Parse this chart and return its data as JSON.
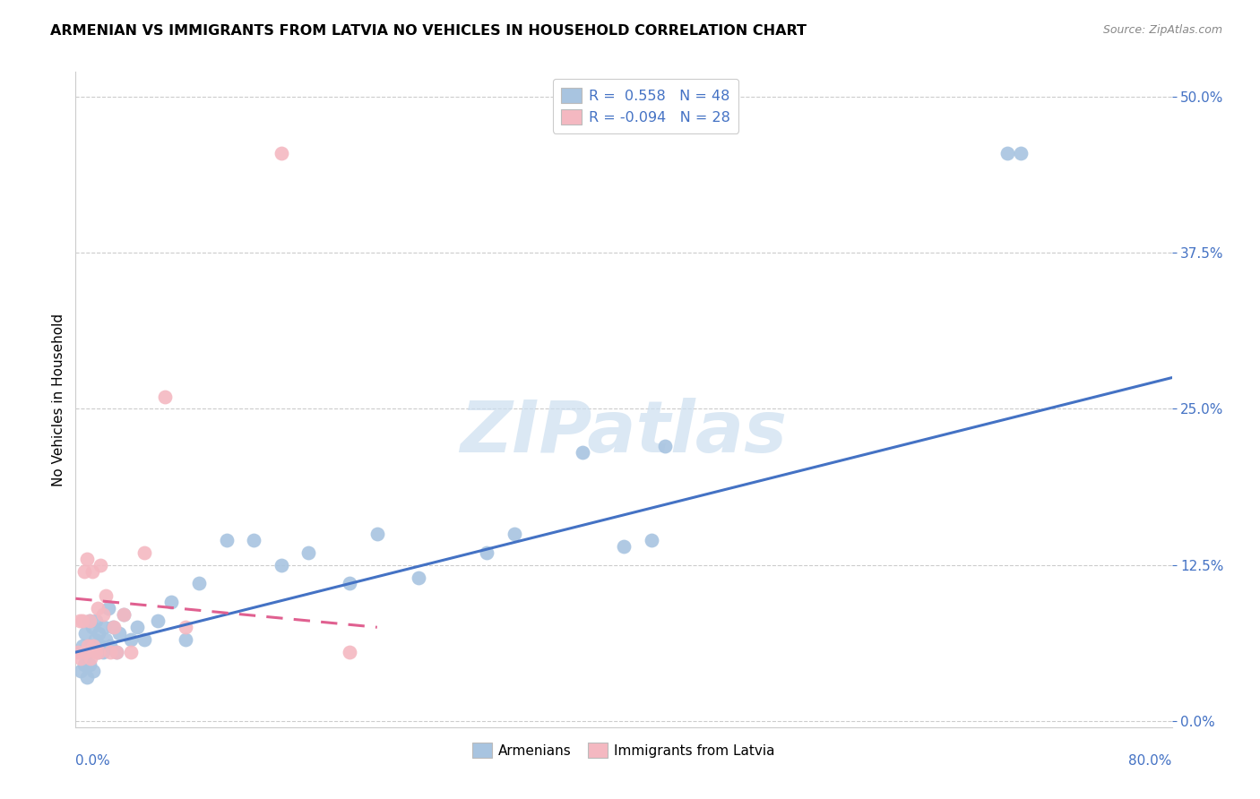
{
  "title": "ARMENIAN VS IMMIGRANTS FROM LATVIA NO VEHICLES IN HOUSEHOLD CORRELATION CHART",
  "source": "Source: ZipAtlas.com",
  "ylabel": "No Vehicles in Household",
  "xlim": [
    0.0,
    0.8
  ],
  "ylim": [
    -0.005,
    0.52
  ],
  "yticks": [
    0.0,
    0.125,
    0.25,
    0.375,
    0.5
  ],
  "ytick_labels": [
    "0.0%",
    "12.5%",
    "25.0%",
    "37.5%",
    "50.0%"
  ],
  "armenian_R": 0.558,
  "armenian_N": 48,
  "latvia_R": -0.094,
  "latvia_N": 28,
  "armenian_color": "#a8c4e0",
  "latvia_color": "#f4b8c1",
  "armenian_line_color": "#4472c4",
  "latvia_line_color": "#e06090",
  "watermark_color": "#ccdff0",
  "armenian_x": [
    0.003,
    0.004,
    0.005,
    0.006,
    0.007,
    0.008,
    0.009,
    0.01,
    0.01,
    0.011,
    0.012,
    0.013,
    0.014,
    0.015,
    0.016,
    0.017,
    0.018,
    0.02,
    0.021,
    0.022,
    0.024,
    0.025,
    0.027,
    0.03,
    0.032,
    0.035,
    0.04,
    0.045,
    0.05,
    0.06,
    0.07,
    0.08,
    0.09,
    0.11,
    0.13,
    0.15,
    0.17,
    0.2,
    0.22,
    0.25,
    0.3,
    0.32,
    0.37,
    0.4,
    0.42,
    0.43,
    0.68,
    0.69
  ],
  "armenian_y": [
    0.055,
    0.04,
    0.06,
    0.045,
    0.07,
    0.035,
    0.055,
    0.08,
    0.045,
    0.06,
    0.075,
    0.04,
    0.065,
    0.08,
    0.055,
    0.07,
    0.06,
    0.055,
    0.075,
    0.065,
    0.09,
    0.06,
    0.075,
    0.055,
    0.07,
    0.085,
    0.065,
    0.075,
    0.065,
    0.08,
    0.095,
    0.065,
    0.11,
    0.145,
    0.145,
    0.125,
    0.135,
    0.11,
    0.15,
    0.115,
    0.135,
    0.15,
    0.215,
    0.14,
    0.145,
    0.22,
    0.455,
    0.455
  ],
  "latvia_x": [
    0.002,
    0.003,
    0.004,
    0.005,
    0.006,
    0.007,
    0.008,
    0.009,
    0.01,
    0.011,
    0.012,
    0.013,
    0.015,
    0.016,
    0.017,
    0.018,
    0.02,
    0.022,
    0.025,
    0.028,
    0.03,
    0.035,
    0.04,
    0.05,
    0.065,
    0.08,
    0.15,
    0.2
  ],
  "latvia_y": [
    0.055,
    0.08,
    0.05,
    0.08,
    0.12,
    0.055,
    0.13,
    0.06,
    0.08,
    0.05,
    0.12,
    0.06,
    0.055,
    0.09,
    0.055,
    0.125,
    0.085,
    0.1,
    0.055,
    0.075,
    0.055,
    0.085,
    0.055,
    0.135,
    0.26,
    0.075,
    0.455,
    0.055
  ],
  "arm_line_x": [
    0.0,
    0.8
  ],
  "arm_line_y": [
    0.055,
    0.275
  ],
  "lat_line_x": [
    0.0,
    0.22
  ],
  "lat_line_y": [
    0.098,
    0.075
  ]
}
